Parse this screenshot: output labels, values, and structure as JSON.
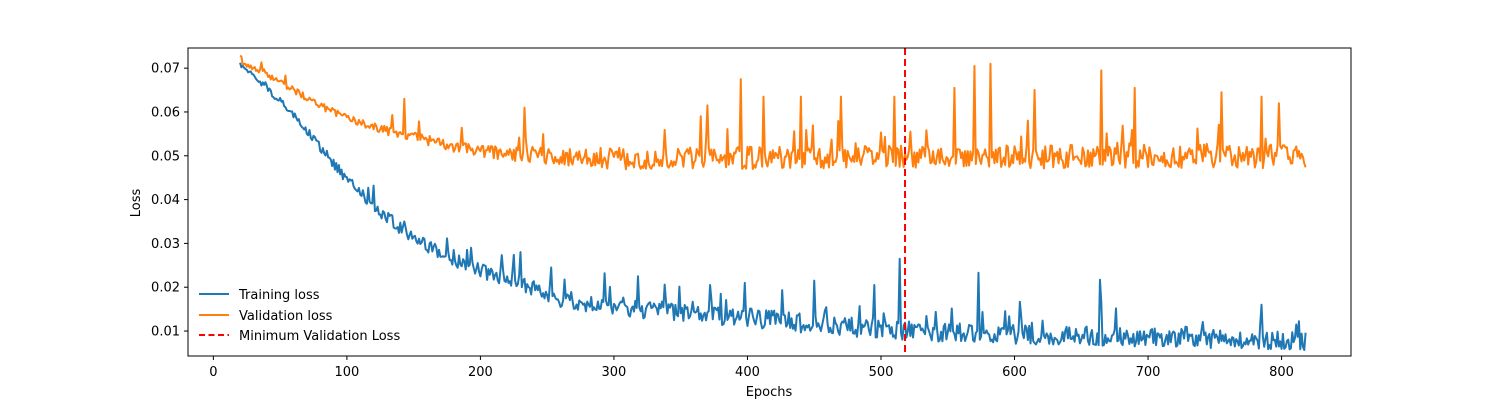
{
  "chart_data": {
    "type": "line",
    "title": "",
    "xlabel": "Epochs",
    "ylabel": "Loss",
    "xlim": [
      -19,
      852
    ],
    "ylim": [
      0.0043,
      0.0746
    ],
    "xticks": [
      0,
      100,
      200,
      300,
      400,
      500,
      600,
      700,
      800
    ],
    "yticks": [
      0.01,
      0.02,
      0.03,
      0.04,
      0.05,
      0.06,
      0.07
    ],
    "ytick_labels": [
      "0.01",
      "0.02",
      "0.03",
      "0.04",
      "0.05",
      "0.06",
      "0.07"
    ],
    "grid": false,
    "legend_position": "lower-left",
    "x_start": 20,
    "x_end": 818,
    "series": [
      {
        "name": "Training loss",
        "color": "#1f77b4",
        "style": "solid",
        "base_curve": {
          "x": [
            20,
            40,
            60,
            80,
            100,
            120,
            140,
            160,
            180,
            200,
            220,
            240,
            260,
            280,
            300,
            340,
            380,
            420,
            460,
            500,
            540,
            580,
            620,
            660,
            700,
            740,
            780,
            818
          ],
          "y": [
            0.071,
            0.0655,
            0.0595,
            0.052,
            0.0445,
            0.0385,
            0.0335,
            0.0295,
            0.026,
            0.0238,
            0.022,
            0.0195,
            0.0175,
            0.0165,
            0.0155,
            0.0145,
            0.0135,
            0.0125,
            0.0112,
            0.0105,
            0.0098,
            0.0095,
            0.009,
            0.0088,
            0.0085,
            0.0082,
            0.008,
            0.0078
          ]
        },
        "noise_schedule": {
          "x": [
            20,
            100,
            200,
            300,
            818
          ],
          "amp": [
            0.0006,
            0.0012,
            0.0018,
            0.0022,
            0.0022
          ]
        },
        "spikes": [
          {
            "x": 143,
            "y": 0.035
          },
          {
            "x": 180,
            "y": 0.0285
          },
          {
            "x": 230,
            "y": 0.028
          },
          {
            "x": 253,
            "y": 0.0245
          },
          {
            "x": 318,
            "y": 0.0225
          },
          {
            "x": 372,
            "y": 0.0205
          },
          {
            "x": 398,
            "y": 0.021
          },
          {
            "x": 450,
            "y": 0.0215
          },
          {
            "x": 495,
            "y": 0.0205
          },
          {
            "x": 514,
            "y": 0.0265
          },
          {
            "x": 573,
            "y": 0.0233
          },
          {
            "x": 664,
            "y": 0.0217
          },
          {
            "x": 785,
            "y": 0.016
          },
          {
            "x": 811,
            "y": 0.0115
          }
        ]
      },
      {
        "name": "Validation loss",
        "color": "#ff7f0e",
        "style": "solid",
        "base_curve": {
          "x": [
            20,
            40,
            60,
            80,
            100,
            120,
            140,
            160,
            180,
            200,
            240,
            280,
            320,
            400,
            500,
            600,
            700,
            818
          ],
          "y": [
            0.0715,
            0.0685,
            0.065,
            0.0615,
            0.0585,
            0.0565,
            0.055,
            0.0535,
            0.0522,
            0.051,
            0.05,
            0.0495,
            0.0492,
            0.0495,
            0.0498,
            0.0498,
            0.0498,
            0.05
          ]
        },
        "noise_schedule": {
          "x": [
            20,
            120,
            220,
            300,
            818
          ],
          "amp": [
            0.0005,
            0.001,
            0.0015,
            0.0025,
            0.0028
          ]
        },
        "spikes": [
          {
            "x": 143,
            "y": 0.063
          },
          {
            "x": 233,
            "y": 0.061
          },
          {
            "x": 370,
            "y": 0.0615
          },
          {
            "x": 395,
            "y": 0.0675
          },
          {
            "x": 412,
            "y": 0.0635
          },
          {
            "x": 440,
            "y": 0.0635
          },
          {
            "x": 470,
            "y": 0.0635
          },
          {
            "x": 510,
            "y": 0.0635
          },
          {
            "x": 522,
            "y": 0.0555
          },
          {
            "x": 555,
            "y": 0.0655
          },
          {
            "x": 570,
            "y": 0.0705
          },
          {
            "x": 582,
            "y": 0.071
          },
          {
            "x": 615,
            "y": 0.065
          },
          {
            "x": 665,
            "y": 0.0695
          },
          {
            "x": 690,
            "y": 0.0655
          },
          {
            "x": 755,
            "y": 0.0645
          },
          {
            "x": 785,
            "y": 0.0635
          },
          {
            "x": 798,
            "y": 0.062
          }
        ]
      }
    ],
    "reference_lines": [
      {
        "name": "Minimum Validation Loss",
        "orientation": "vertical",
        "x": 518,
        "color": "#ff0000",
        "style": "dashed"
      }
    ]
  }
}
